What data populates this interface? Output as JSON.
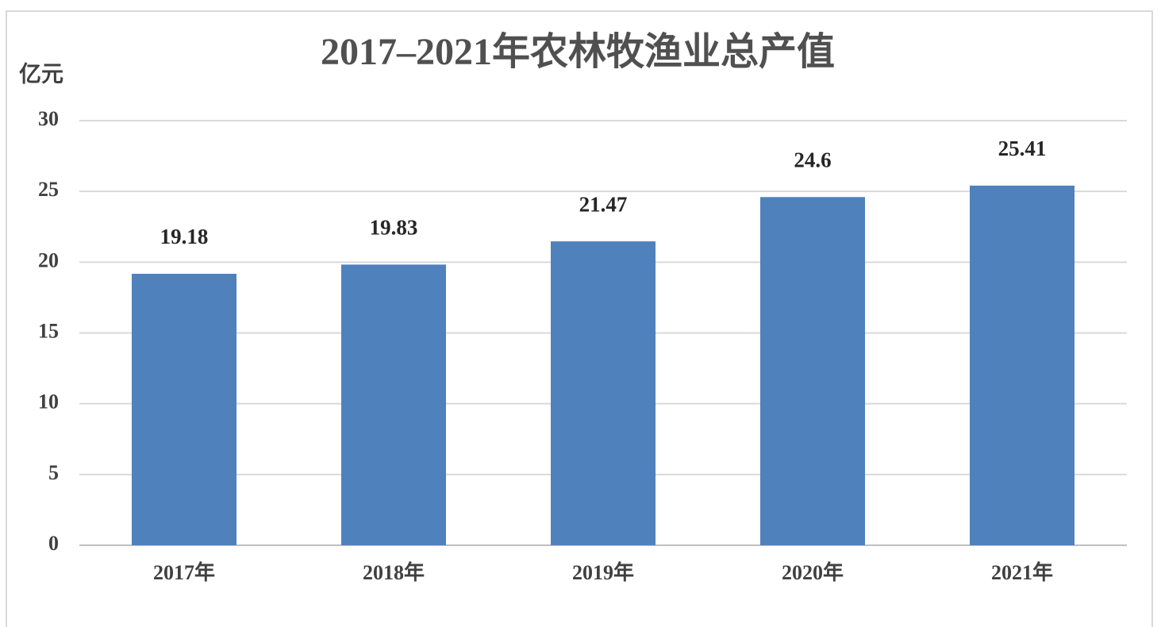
{
  "chart_data": {
    "type": "bar",
    "title": "2017–2021年农林牧渔业总产值",
    "y_label": "亿元",
    "categories": [
      "2017年",
      "2018年",
      "2019年",
      "2020年",
      "2021年"
    ],
    "values": [
      19.18,
      19.83,
      21.47,
      24.6,
      25.41
    ],
    "color": "#4f81bd",
    "ylim": [
      0,
      30
    ],
    "yticks": [
      0,
      5,
      10,
      15,
      20,
      25,
      30
    ],
    "grid": true
  }
}
